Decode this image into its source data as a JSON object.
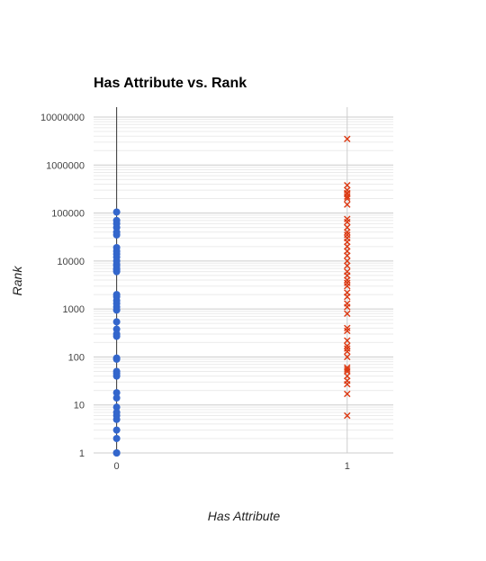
{
  "chart_data": {
    "type": "scatter",
    "title": "Has Attribute vs. Rank",
    "xlabel": "Has Attribute",
    "ylabel": "Rank",
    "y_scale": "log",
    "ylim": [
      1,
      10000000
    ],
    "xlim": [
      -0.1,
      1.2
    ],
    "x_ticks": [
      0,
      1
    ],
    "x_tick_labels": [
      "0",
      "1"
    ],
    "y_ticks": [
      1,
      10,
      100,
      1000,
      10000,
      100000,
      1000000,
      10000000
    ],
    "y_tick_labels": [
      "1",
      "10",
      "100",
      "1000",
      "10000",
      "100000",
      "1000000",
      "10000000"
    ],
    "grid": true,
    "legend": "none",
    "colors": {
      "series_0": "#3366cc",
      "series_1": "#dc3912",
      "grid_major": "#cccccc",
      "grid_minor": "#ebebeb"
    },
    "series": [
      {
        "marker": "circle",
        "x": 0,
        "values": [
          1,
          1,
          2,
          3,
          5,
          6,
          7,
          9,
          14,
          18,
          40,
          45,
          50,
          90,
          95,
          270,
          300,
          380,
          540,
          950,
          1100,
          1300,
          1500,
          1800,
          2000,
          6000,
          6500,
          7000,
          8000,
          8500,
          10000,
          12000,
          14000,
          16000,
          19000,
          35000,
          40000,
          50000,
          60000,
          70000,
          105000
        ]
      },
      {
        "marker": "x",
        "x": 1,
        "values": [
          6,
          17,
          27,
          32,
          40,
          50,
          55,
          60,
          100,
          130,
          150,
          170,
          220,
          350,
          400,
          800,
          1100,
          1300,
          1800,
          2200,
          3000,
          3500,
          4000,
          5000,
          6000,
          8000,
          10000,
          13000,
          16000,
          20000,
          25000,
          30000,
          35000,
          40000,
          50000,
          65000,
          75000,
          150000,
          200000,
          220000,
          250000,
          260000,
          300000,
          380000,
          3500000
        ]
      }
    ]
  }
}
